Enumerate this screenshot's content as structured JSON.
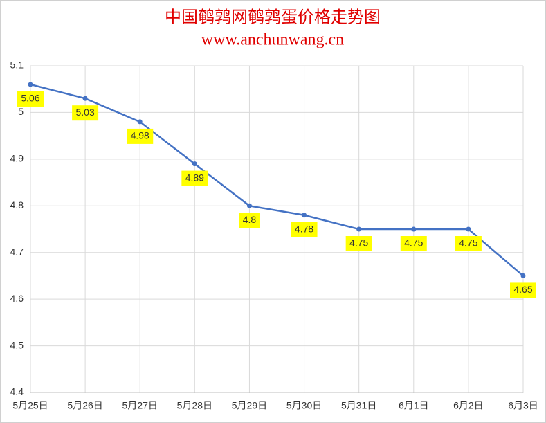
{
  "chart_data": {
    "type": "line",
    "title": "中国鹌鹑网鹌鹑蛋价格走势图",
    "subtitle": "www.anchunwang.cn",
    "categories": [
      "5月25日",
      "5月26日",
      "5月27日",
      "5月28日",
      "5月29日",
      "5月30日",
      "5月31日",
      "6月1日",
      "6月2日",
      "6月3日"
    ],
    "values": [
      5.06,
      5.03,
      4.98,
      4.89,
      4.8,
      4.78,
      4.75,
      4.75,
      4.75,
      4.65
    ],
    "color": "#4472c4",
    "label_background": "#ffff00",
    "title_color": "#e00000",
    "ylim": [
      4.4,
      5.1
    ],
    "yticks": [
      4.4,
      4.5,
      4.6,
      4.7,
      4.8,
      4.9,
      5,
      5.1
    ],
    "grid": true
  }
}
